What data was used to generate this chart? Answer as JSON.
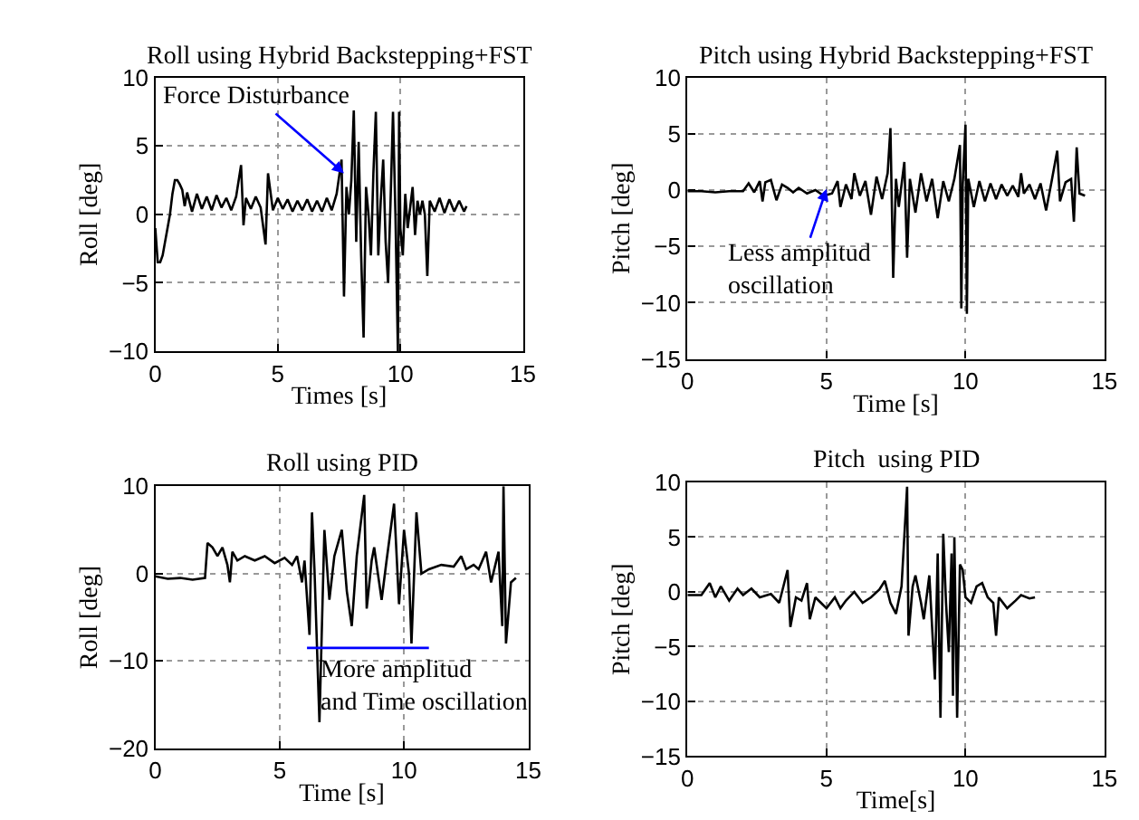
{
  "chart_data": [
    {
      "type": "line",
      "title": "Roll using Hybrid Backstepping+FST",
      "xlabel": "Times [s]",
      "ylabel": "Roll [deg]",
      "xlim": [
        0,
        15
      ],
      "xticks": [
        0,
        5,
        10,
        15
      ],
      "ylim": [
        -10,
        10
      ],
      "yticks": [
        -10,
        -5,
        0,
        5,
        10
      ],
      "grid": true,
      "series": [
        {
          "color": "#000000",
          "x": [
            0,
            0.1,
            0.2,
            0.3,
            0.4,
            0.5,
            0.6,
            0.7,
            0.8,
            0.9,
            1.0,
            1.1,
            1.2,
            1.3,
            1.5,
            1.7,
            1.9,
            2.1,
            2.3,
            2.5,
            2.7,
            2.9,
            3.1,
            3.3,
            3.5,
            3.6,
            3.7,
            3.9,
            4.1,
            4.3,
            4.5,
            4.6,
            4.8,
            5.0,
            5.2,
            5.4,
            5.6,
            5.8,
            6.0,
            6.2,
            6.4,
            6.6,
            6.8,
            7.0,
            7.2,
            7.4,
            7.6,
            7.7,
            7.8,
            7.9,
            8.0,
            8.1,
            8.2,
            8.3,
            8.4,
            8.5,
            8.6,
            8.7,
            8.8,
            8.9,
            9.0,
            9.1,
            9.2,
            9.3,
            9.4,
            9.5,
            9.6,
            9.7,
            9.8,
            9.9,
            9.95,
            10.0,
            10.1,
            10.2,
            10.3,
            10.4,
            10.5,
            10.6,
            10.7,
            10.8,
            10.9,
            11.0,
            11.1,
            11.2,
            11.4,
            11.6,
            11.8,
            12.0,
            12.2,
            12.4,
            12.6,
            12.7
          ],
          "values": [
            -1,
            -3.5,
            -3.5,
            -3,
            -2,
            -1,
            0,
            1.5,
            2.5,
            2.5,
            2.2,
            1.8,
            0.6,
            1.6,
            0.2,
            1.5,
            0.4,
            1.3,
            0.3,
            1.4,
            0.5,
            1.2,
            0.3,
            1.3,
            3.6,
            -0.8,
            1.2,
            0.4,
            1.3,
            0.5,
            -2.2,
            3.0,
            0.3,
            1.2,
            0.4,
            1.1,
            0.2,
            1.0,
            0.3,
            1.1,
            0.2,
            1.0,
            0.2,
            1.2,
            0.3,
            1.5,
            4.0,
            -6.0,
            2.0,
            0.0,
            2.5,
            7.6,
            -2.0,
            5.3,
            -3.0,
            -9.0,
            2.0,
            0.0,
            -3.0,
            3.0,
            7.5,
            -3.0,
            1.0,
            4.0,
            -2.0,
            -5.0,
            1.0,
            7.5,
            0.0,
            -10.0,
            7.5,
            -1.0,
            -3.0,
            1.5,
            -1.0,
            0.5,
            2.0,
            -1.5,
            1.0,
            0.0,
            1.0,
            0.0,
            -4.5,
            1.0,
            0.2,
            1.2,
            0.1,
            1.1,
            0.2,
            1.0,
            0.2,
            0.6
          ]
        }
      ],
      "annotations": [
        {
          "text": "Force Disturbance",
          "x": 7.7,
          "y": 3
        }
      ]
    },
    {
      "type": "line",
      "title": "Pitch using Hybrid Backstepping+FST",
      "xlabel": "Time [s]",
      "ylabel": "Pitch [deg]",
      "xlim": [
        0,
        15
      ],
      "xticks": [
        0,
        5,
        10,
        15
      ],
      "ylim": [
        -15,
        10
      ],
      "yticks": [
        -15,
        -10,
        -5,
        0,
        5,
        10
      ],
      "grid": true,
      "series": [
        {
          "color": "#000000",
          "x": [
            0,
            0.5,
            1.0,
            1.5,
            2.0,
            2.2,
            2.4,
            2.6,
            2.7,
            2.8,
            3.0,
            3.2,
            3.4,
            3.6,
            3.8,
            4.0,
            4.3,
            4.6,
            4.9,
            5.2,
            5.4,
            5.5,
            5.7,
            5.9,
            6.0,
            6.2,
            6.4,
            6.6,
            6.8,
            7.0,
            7.2,
            7.3,
            7.4,
            7.5,
            7.6,
            7.8,
            7.9,
            8.0,
            8.2,
            8.4,
            8.6,
            8.8,
            9.0,
            9.2,
            9.4,
            9.6,
            9.8,
            9.85,
            9.9,
            10.0,
            10.05,
            10.1,
            10.3,
            10.5,
            10.7,
            10.9,
            11.1,
            11.3,
            11.5,
            11.7,
            11.9,
            12.0,
            12.1,
            12.3,
            12.5,
            12.7,
            12.9,
            13.1,
            13.3,
            13.4,
            13.6,
            13.8,
            13.9,
            14.0,
            14.1,
            14.3
          ],
          "values": [
            -0.1,
            -0.1,
            -0.2,
            -0.1,
            -0.1,
            0.6,
            -0.2,
            0.8,
            -1.0,
            0.7,
            0.9,
            -0.9,
            0.5,
            0.2,
            -0.2,
            0.2,
            -0.3,
            0.0,
            -0.5,
            -0.3,
            0.8,
            -1.5,
            0.5,
            -0.8,
            1.5,
            -0.5,
            0.8,
            -2.2,
            1.2,
            -0.8,
            1.5,
            5.5,
            -7.8,
            1.0,
            -1.5,
            2.5,
            -6.0,
            1.0,
            -2.0,
            1.5,
            -1.0,
            1.0,
            -2.5,
            0.8,
            -1.0,
            1.0,
            4.0,
            -10.5,
            0.5,
            5.8,
            -11.0,
            1.0,
            -1.5,
            0.8,
            -1.0,
            0.6,
            -0.8,
            0.5,
            -0.5,
            0.4,
            -0.6,
            1.5,
            -0.3,
            0.5,
            -0.8,
            0.6,
            -1.8,
            0.8,
            3.5,
            -1.0,
            0.7,
            1.0,
            -2.8,
            3.8,
            -0.3,
            -0.5
          ]
        }
      ],
      "annotations": [
        {
          "text": "Less amplitud\noscillation",
          "x": 5,
          "y": 0.1
        }
      ]
    },
    {
      "type": "line",
      "title": "Roll using PID",
      "xlabel": "Time [s]",
      "ylabel": "Roll [deg]",
      "xlim": [
        0,
        15
      ],
      "xticks": [
        0,
        5,
        10,
        15
      ],
      "ylim": [
        -20,
        10
      ],
      "yticks": [
        -20,
        -10,
        0,
        10
      ],
      "grid": true,
      "series": [
        {
          "color": "#000000",
          "x": [
            0,
            0.5,
            1.0,
            1.5,
            2.0,
            2.1,
            2.3,
            2.5,
            2.7,
            2.9,
            3.0,
            3.1,
            3.3,
            3.6,
            4.0,
            4.4,
            4.8,
            5.2,
            5.5,
            5.7,
            5.9,
            6.0,
            6.2,
            6.3,
            6.4,
            6.6,
            6.8,
            7.0,
            7.2,
            7.5,
            7.7,
            7.9,
            8.1,
            8.4,
            8.5,
            8.7,
            8.8,
            9.0,
            9.1,
            9.3,
            9.6,
            9.8,
            10.0,
            10.2,
            10.3,
            10.5,
            10.7,
            11.0,
            11.5,
            12.0,
            12.3,
            12.5,
            12.8,
            13.0,
            13.3,
            13.5,
            13.8,
            13.95,
            14.0,
            14.1,
            14.3,
            14.5
          ],
          "values": [
            -0.3,
            -0.6,
            -0.5,
            -0.7,
            -0.5,
            3.5,
            3.0,
            2.0,
            3.0,
            1.0,
            -1.0,
            2.5,
            1.5,
            2.0,
            1.5,
            2.0,
            1.2,
            1.8,
            1.0,
            2.0,
            -1.0,
            1.5,
            -7.0,
            7.0,
            0.5,
            -17.0,
            5.0,
            -3.0,
            2.0,
            5.0,
            -2.0,
            -6.0,
            2.0,
            9.0,
            -4.0,
            1.5,
            3.0,
            -1.0,
            -3.0,
            1.5,
            8.0,
            -3.5,
            5.0,
            0.0,
            -8.0,
            7.0,
            0.0,
            0.5,
            1.0,
            0.8,
            2.0,
            0.5,
            1.0,
            0.5,
            2.5,
            -1.0,
            2.5,
            -6.0,
            10.0,
            -8.0,
            -1.0,
            -0.5
          ]
        },
        {
          "color": "#0000ff",
          "x": [
            6.1,
            11.0
          ],
          "values": [
            -8.5,
            -8.5
          ]
        }
      ],
      "annotations": [
        "More amplitud\nand Time oscillation"
      ]
    },
    {
      "type": "line",
      "title": "Pitch  using PID",
      "xlabel": "Time[s]",
      "ylabel": "Pitch [deg]",
      "xlim": [
        0,
        15
      ],
      "xticks": [
        0,
        5,
        10,
        15
      ],
      "ylim": [
        -15,
        10
      ],
      "yticks": [
        -15,
        -10,
        -5,
        0,
        5,
        10
      ],
      "grid": true,
      "series": [
        {
          "color": "#000000",
          "x": [
            0,
            0.5,
            0.8,
            1.0,
            1.2,
            1.5,
            1.8,
            2.0,
            2.3,
            2.6,
            3.0,
            3.3,
            3.6,
            3.7,
            3.9,
            4.1,
            4.3,
            4.4,
            4.6,
            4.8,
            5.0,
            5.3,
            5.5,
            5.7,
            6.0,
            6.3,
            6.6,
            6.9,
            7.1,
            7.3,
            7.5,
            7.7,
            7.9,
            7.95,
            8.1,
            8.2,
            8.4,
            8.5,
            8.7,
            8.9,
            9.0,
            9.1,
            9.2,
            9.3,
            9.4,
            9.5,
            9.55,
            9.6,
            9.7,
            9.8,
            9.9,
            10.0,
            10.2,
            10.4,
            10.6,
            10.8,
            11.0,
            11.1,
            11.2,
            11.5,
            11.8,
            12.0,
            12.3,
            12.5
          ],
          "values": [
            -0.3,
            -0.3,
            0.8,
            -0.5,
            0.5,
            -0.8,
            0.3,
            -0.3,
            0.3,
            -0.5,
            -0.2,
            -1.0,
            2.0,
            -3.2,
            -0.5,
            -0.8,
            0.8,
            -2.5,
            -0.5,
            -1.0,
            -1.5,
            -0.5,
            -1.5,
            -0.8,
            0.0,
            -1.0,
            -0.5,
            0.2,
            1.0,
            -1.0,
            -2.0,
            0.5,
            9.6,
            -4.0,
            0.5,
            1.5,
            -1.0,
            -2.5,
            1.5,
            -8.0,
            3.5,
            -11.5,
            5.3,
            -1.0,
            -5.5,
            3.5,
            -9.5,
            5.0,
            -11.5,
            2.5,
            2.0,
            -0.5,
            -1.0,
            0.5,
            0.8,
            -0.5,
            -1.0,
            -4.0,
            -0.5,
            -1.5,
            -0.8,
            -0.3,
            -0.6,
            -0.5
          ]
        }
      ]
    }
  ]
}
